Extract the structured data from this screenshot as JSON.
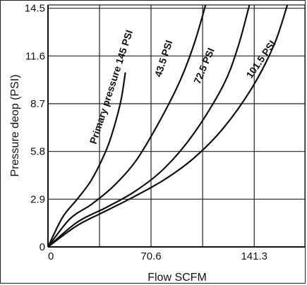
{
  "chart_data": {
    "type": "line",
    "title": "",
    "xlabel": "Flow SCFM",
    "ylabel": "Pressure deop (PSI)",
    "xlim": [
      0,
      176
    ],
    "ylim": [
      0,
      14.7
    ],
    "x_ticks": [
      {
        "value": 0,
        "label": "0"
      },
      {
        "value": 70.6,
        "label": "70.6"
      },
      {
        "value": 141.3,
        "label": "141.3"
      }
    ],
    "y_ticks": [
      {
        "value": 0,
        "label": "0"
      },
      {
        "value": 2.9,
        "label": "2.9"
      },
      {
        "value": 5.8,
        "label": "5.8"
      },
      {
        "value": 8.7,
        "label": "8.7"
      },
      {
        "value": 11.6,
        "label": "11.6"
      },
      {
        "value": 14.5,
        "label": "14.5"
      }
    ],
    "grid": true,
    "series": [
      {
        "name": "Primary pressure 145 PSI",
        "x": [
          0,
          10,
          20,
          30,
          40,
          45,
          50,
          53
        ],
        "y": [
          0,
          1.8,
          2.9,
          4.1,
          5.9,
          7.2,
          8.9,
          10.6
        ]
      },
      {
        "name": "43.5 PSI",
        "x": [
          0,
          15,
          30,
          45,
          60,
          75,
          90,
          100,
          108
        ],
        "y": [
          0,
          1.7,
          2.6,
          3.7,
          5.2,
          7.4,
          10.0,
          12.3,
          14.7
        ]
      },
      {
        "name": "72.5 PSI",
        "x": [
          0,
          20,
          40,
          60,
          80,
          100,
          120,
          130,
          138
        ],
        "y": [
          0,
          1.5,
          2.4,
          3.4,
          4.8,
          6.9,
          9.8,
          12.1,
          14.7
        ]
      },
      {
        "name": "101.5 PSI",
        "x": [
          0,
          20,
          40,
          60,
          80,
          100,
          120,
          140,
          155,
          164
        ],
        "y": [
          0,
          1.3,
          2.2,
          3.1,
          4.1,
          5.4,
          7.2,
          9.7,
          12.3,
          14.7
        ]
      }
    ]
  },
  "curve_labels": [
    {
      "text": "Primary pressure 145 PSI"
    },
    {
      "text": "43.5 PSI"
    },
    {
      "text": "72.5 PSI"
    },
    {
      "text": "101.5 PSI"
    }
  ]
}
